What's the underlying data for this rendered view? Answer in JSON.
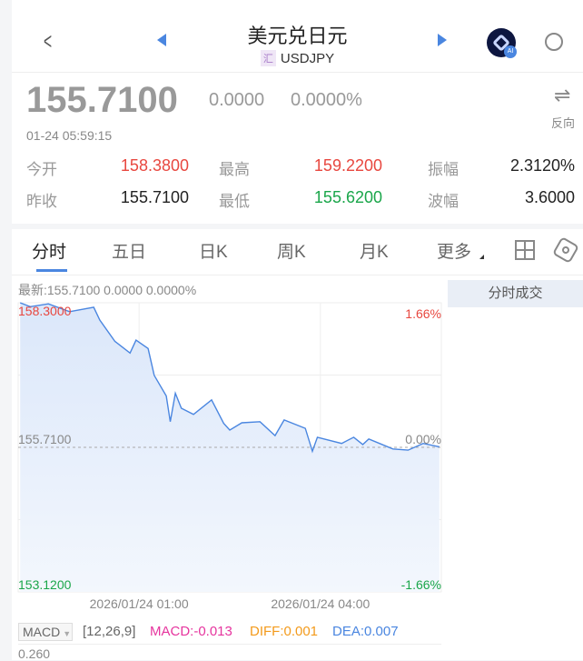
{
  "header": {
    "title": "美元兑日元",
    "badge": "汇",
    "symbol": "USDJPY",
    "ai_badge": "AI"
  },
  "quote": {
    "price": "155.7100",
    "change": "0.0000",
    "change_pct": "0.0000%",
    "reverse_label": "反向",
    "timestamp": "01-24 05:59:15",
    "stats": [
      {
        "label": "今开",
        "value": "158.3800",
        "color": "#e8473f"
      },
      {
        "label": "最高",
        "value": "159.2200",
        "color": "#e8473f"
      },
      {
        "label": "振幅",
        "value": "2.3120%",
        "color": "#222222"
      },
      {
        "label": "昨收",
        "value": "155.7100",
        "color": "#222222"
      },
      {
        "label": "最低",
        "value": "155.6200",
        "color": "#1aa64a"
      },
      {
        "label": "波幅",
        "value": "3.6000",
        "color": "#222222"
      }
    ]
  },
  "tabs": [
    "分时",
    "五日",
    "日K",
    "周K",
    "月K",
    "更多"
  ],
  "active_tab": "分时",
  "chart_info": "最新:155.7100  0.0000  0.0000%",
  "side_panel_title": "分时成交",
  "chart_data": {
    "type": "area",
    "y_labels": {
      "top": "158.3000",
      "mid": "155.7100",
      "bottom": "153.1200",
      "top_pct": "1.66%",
      "mid_pct": "0.00%",
      "bottom_pct": "-1.66%"
    },
    "ylim": [
      153.12,
      158.3
    ],
    "prev_close": 155.71,
    "x_range": [
      "23:00",
      "06:00"
    ],
    "x_ticks": [
      "2026/01/24 01:00",
      "2026/01/24 04:00"
    ],
    "x_tick_times": [
      "01:00",
      "04:00"
    ],
    "grid": true,
    "line_color": "#4a86e0",
    "points": [
      [
        "23:02",
        158.3
      ],
      [
        "23:12",
        158.23
      ],
      [
        "23:30",
        158.28
      ],
      [
        "23:51",
        158.14
      ],
      [
        "00:15",
        158.22
      ],
      [
        "00:21",
        157.99
      ],
      [
        "00:36",
        157.61
      ],
      [
        "00:51",
        157.4
      ],
      [
        "00:57",
        157.63
      ],
      [
        "01:09",
        157.48
      ],
      [
        "01:15",
        157.0
      ],
      [
        "01:27",
        156.63
      ],
      [
        "01:31",
        156.17
      ],
      [
        "01:36",
        156.68
      ],
      [
        "01:42",
        156.41
      ],
      [
        "01:54",
        156.3
      ],
      [
        "02:12",
        156.56
      ],
      [
        "02:24",
        156.14
      ],
      [
        "02:30",
        156.02
      ],
      [
        "02:42",
        156.15
      ],
      [
        "03:00",
        156.17
      ],
      [
        "03:15",
        155.92
      ],
      [
        "03:24",
        156.2
      ],
      [
        "03:45",
        156.05
      ],
      [
        "03:52",
        155.64
      ],
      [
        "03:57",
        155.89
      ],
      [
        "04:21",
        155.78
      ],
      [
        "04:33",
        155.89
      ],
      [
        "04:42",
        155.76
      ],
      [
        "04:48",
        155.86
      ],
      [
        "05:12",
        155.68
      ],
      [
        "05:27",
        155.66
      ],
      [
        "05:42",
        155.78
      ],
      [
        "05:58",
        155.72
      ]
    ]
  },
  "macd": {
    "selector": "MACD",
    "params": "[12,26,9]",
    "macd": "MACD:-0.013",
    "diff": "DIFF:0.001",
    "dea": "DEA:0.007",
    "top_label": "0.260"
  }
}
